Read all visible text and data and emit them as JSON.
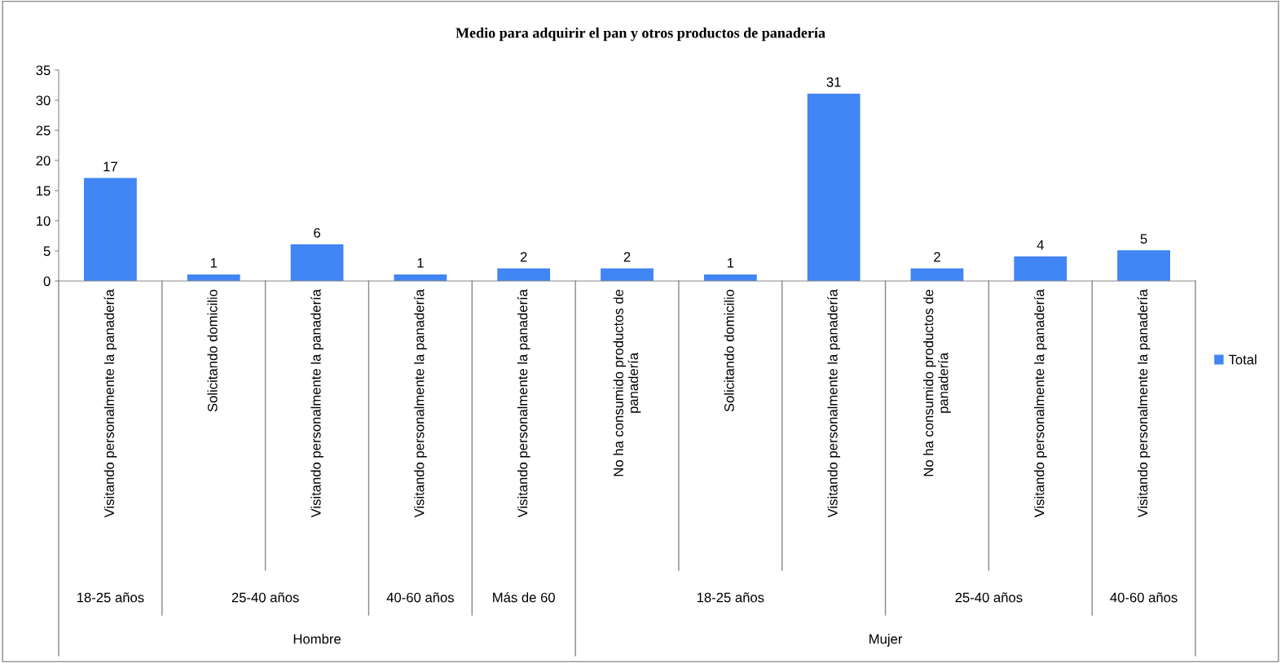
{
  "chart_data": {
    "type": "bar",
    "title": "Medio para adquirir el pan y otros productos de panadería",
    "categories": [
      "Visitando personalmente la panadería",
      "Solicitando domicilio",
      "Visitando personalmente la panadería",
      "Visitando personalmente la panadería",
      "Visitando personalmente la panadería",
      "No ha consumido productos de\npanadería",
      "Solicitando domicilio",
      "Visitando personalmente la panadería",
      "No ha consumido productos de\npanadería",
      "Visitando personalmente la panadería",
      "Visitando personalmente la panadería"
    ],
    "series": [
      {
        "name": "Total",
        "color": "#4285f4",
        "values": [
          17,
          1,
          6,
          1,
          2,
          2,
          1,
          31,
          2,
          4,
          5
        ]
      }
    ],
    "ylim": [
      0,
      35
    ],
    "yticks": [
      0,
      5,
      10,
      15,
      20,
      25,
      30,
      35
    ],
    "data_labels": true,
    "legend": "right",
    "grid": false,
    "annotations": [
      "18-25 años",
      "25-40 años",
      "40-60 años",
      "Más de 60",
      "18-25 años",
      "25-40 años",
      "40-60 años",
      "Hombre",
      "Mujer"
    ]
  }
}
